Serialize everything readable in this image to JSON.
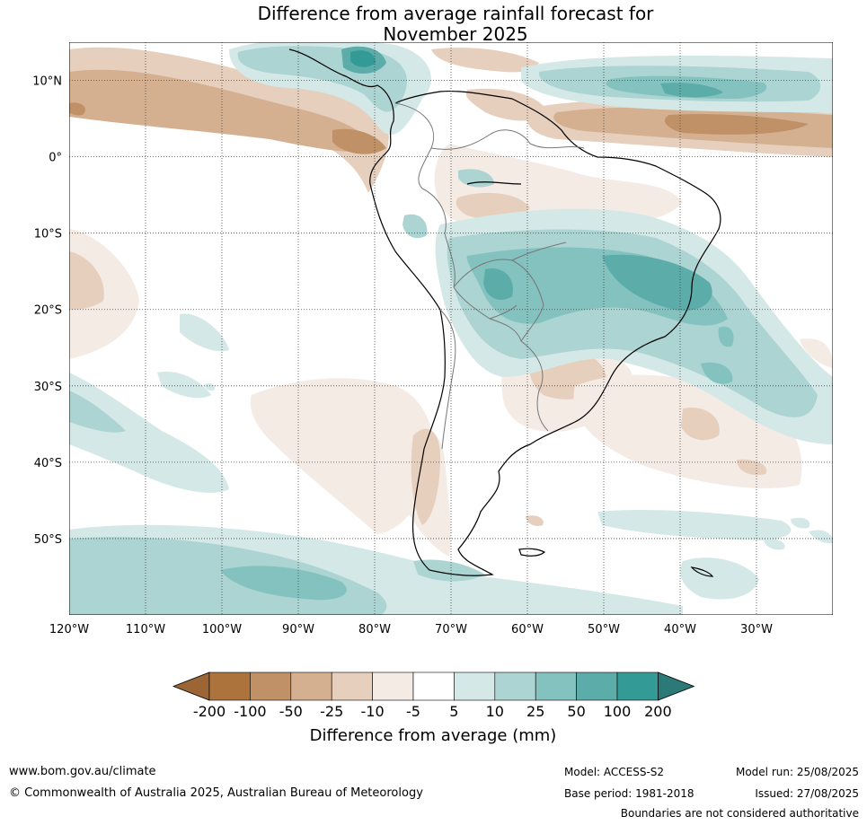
{
  "title": {
    "line1": "Difference from average rainfall forecast for",
    "line2": "November 2025"
  },
  "map": {
    "lon_range": [
      -120,
      -20
    ],
    "lat_range": [
      -60,
      15
    ],
    "lon_ticks": [
      {
        "value": -120,
        "label": "120°W"
      },
      {
        "value": -110,
        "label": "110°W"
      },
      {
        "value": -100,
        "label": "100°W"
      },
      {
        "value": -90,
        "label": "90°W"
      },
      {
        "value": -80,
        "label": "80°W"
      },
      {
        "value": -70,
        "label": "70°W"
      },
      {
        "value": -60,
        "label": "60°W"
      },
      {
        "value": -50,
        "label": "50°W"
      },
      {
        "value": -40,
        "label": "40°W"
      },
      {
        "value": -30,
        "label": "30°W"
      }
    ],
    "lat_ticks": [
      {
        "value": 10,
        "label": "10°N"
      },
      {
        "value": 0,
        "label": "0°"
      },
      {
        "value": -10,
        "label": "10°S"
      },
      {
        "value": -20,
        "label": "20°S"
      },
      {
        "value": -30,
        "label": "30°S"
      },
      {
        "value": -40,
        "label": "40°S"
      },
      {
        "value": -50,
        "label": "50°S"
      }
    ],
    "gridlines": true
  },
  "colorbar": {
    "labels": [
      "-200",
      "-100",
      "-50",
      "-25",
      "-10",
      "-5",
      "5",
      "10",
      "25",
      "50",
      "100",
      "200"
    ],
    "colors": [
      "#ac733c",
      "#c09066",
      "#d4b091",
      "#e6cfbd",
      "#f4ebe5",
      "#ffffff",
      "#d4e9e7",
      "#abd4d2",
      "#84c2bf",
      "#5cadaa",
      "#339a96"
    ],
    "low_extend_color": "#9b6535",
    "high_extend_color": "#2c7a77",
    "title": "Difference from average (mm)"
  },
  "footer": {
    "url": "www.bom.gov.au/climate",
    "copyright": "© Commonwealth of Australia 2025, Australian Bureau of Meteorology",
    "model": "Model: ACCESS-S2",
    "base_period": "Base period: 1981-2018",
    "model_run": "Model run: 25/08/2025",
    "issued": "Issued: 27/08/2025",
    "disclaimer": "Boundaries are not considered authoritative"
  }
}
